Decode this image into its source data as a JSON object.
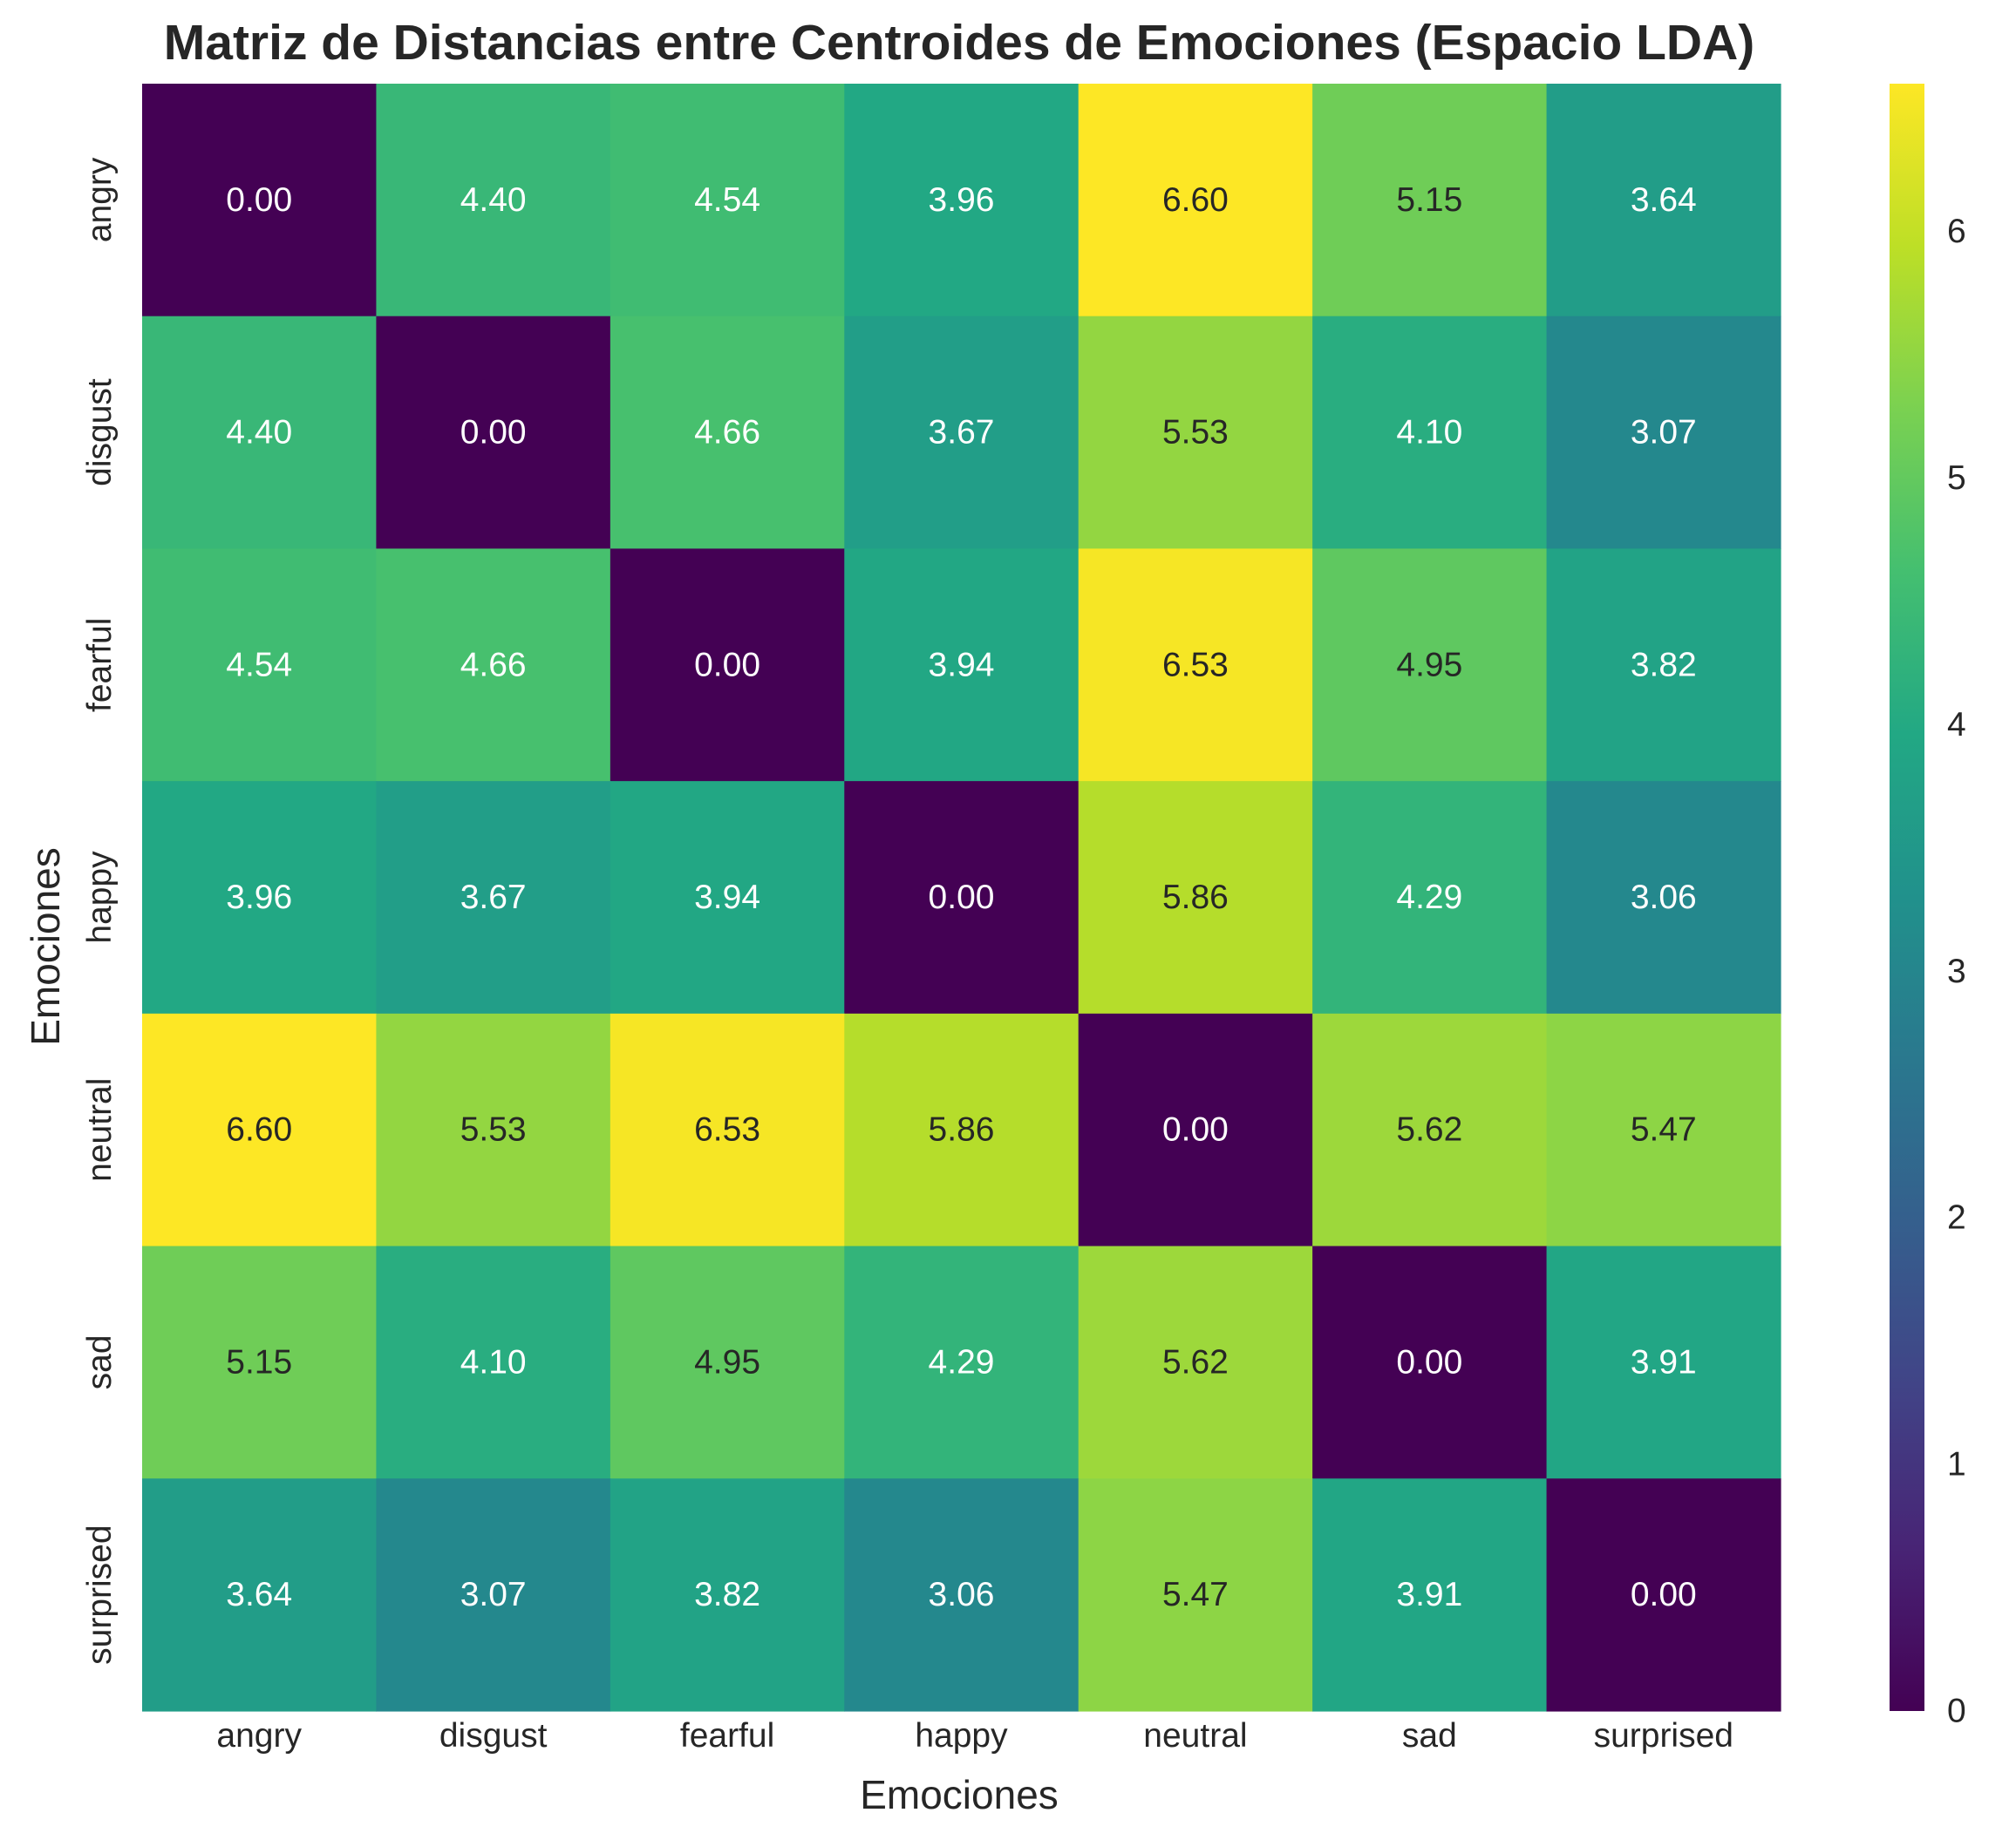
{
  "chart_data": {
    "type": "heatmap",
    "title": "Matriz de Distancias entre Centroides de Emociones (Espacio LDA)",
    "xlabel": "Emociones",
    "ylabel": "Emociones",
    "x_categories": [
      "angry",
      "disgust",
      "fearful",
      "happy",
      "neutral",
      "sad",
      "surprised"
    ],
    "y_categories": [
      "angry",
      "disgust",
      "fearful",
      "happy",
      "neutral",
      "sad",
      "surprised"
    ],
    "values": [
      [
        0.0,
        4.4,
        4.54,
        3.96,
        6.6,
        5.15,
        3.64
      ],
      [
        4.4,
        0.0,
        4.66,
        3.67,
        5.53,
        4.1,
        3.07
      ],
      [
        4.54,
        4.66,
        0.0,
        3.94,
        6.53,
        4.95,
        3.82
      ],
      [
        3.96,
        3.67,
        3.94,
        0.0,
        5.86,
        4.29,
        3.06
      ],
      [
        6.6,
        5.53,
        6.53,
        5.86,
        0.0,
        5.62,
        5.47
      ],
      [
        5.15,
        4.1,
        4.95,
        4.29,
        5.62,
        0.0,
        3.91
      ],
      [
        3.64,
        3.07,
        3.82,
        3.06,
        5.47,
        3.91,
        0.0
      ]
    ],
    "value_format": "2 decimals",
    "colormap": "viridis",
    "vmin": 0,
    "vmax": 6.6,
    "colorbar": {
      "ticks": [
        0,
        1,
        2,
        3,
        4,
        5,
        6
      ],
      "tick_labels": [
        "0",
        "1",
        "2",
        "3",
        "4",
        "5",
        "6"
      ],
      "placement": "right"
    },
    "grid": false,
    "annotation_colors": {
      "dark_text": "#262626",
      "light_text": "#ffffff"
    }
  }
}
